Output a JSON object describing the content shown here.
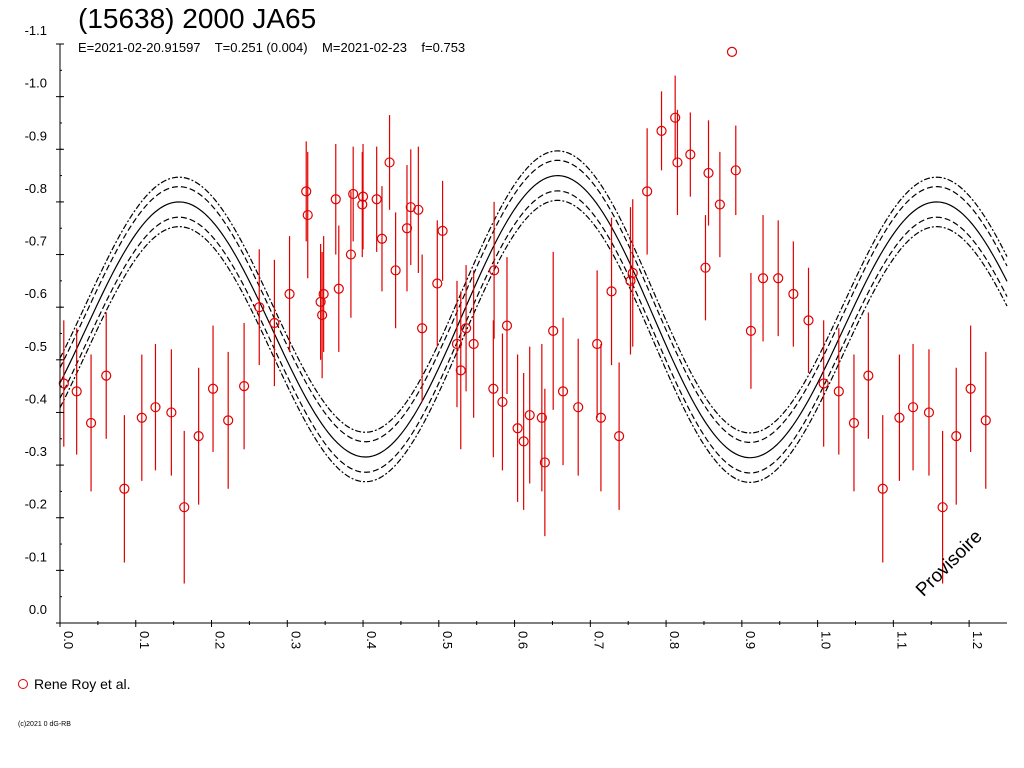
{
  "chart_data": {
    "type": "scatter",
    "title": "(15638) 2000 JA65",
    "subtitle": "E=2021-02-20.91597    T=0.251 (0.004)    M=2021-02-23    f=0.753",
    "xlabel": "",
    "ylabel": "",
    "xlim": [
      0,
      1.25
    ],
    "ylim": [
      0.0,
      -1.1
    ],
    "y_inverted": true,
    "x_ticks": [
      "0.0",
      "0.1",
      "0.2",
      "0.3",
      "0.4",
      "0.5",
      "0.6",
      "0.7",
      "0.8",
      "0.9",
      "1.0",
      "1.1",
      "1.2"
    ],
    "y_ticks": [
      "-1.1",
      "-1.0",
      "-0.9",
      "-0.8",
      "-0.7",
      "-0.6",
      "-0.5",
      "-0.4",
      "-0.3",
      "-0.2",
      "-0.1",
      "0.0"
    ],
    "grid": false,
    "legend_position": "bottom-left",
    "colors": {
      "data": "#e00000",
      "fit": "#000000"
    },
    "series": [
      {
        "name": "Rene Roy et al.",
        "marker": "open-circle",
        "x": [
          0.005,
          0.022,
          0.041,
          0.061,
          0.085,
          0.108,
          0.126,
          0.147,
          0.164,
          0.183,
          0.202,
          0.222,
          0.243,
          0.263,
          0.283,
          0.303,
          0.325,
          0.327,
          0.344,
          0.346,
          0.348,
          0.364,
          0.368,
          0.384,
          0.387,
          0.399,
          0.4,
          0.418,
          0.425,
          0.435,
          0.443,
          0.458,
          0.463,
          0.473,
          0.478,
          0.498,
          0.505,
          0.524,
          0.529,
          0.536,
          0.546,
          0.572,
          0.573,
          0.584,
          0.59,
          0.604,
          0.612,
          0.62,
          0.636,
          0.64,
          0.651,
          0.664,
          0.684,
          0.709,
          0.714,
          0.728,
          0.738,
          0.753,
          0.756,
          0.775,
          0.794,
          0.812,
          0.815,
          0.832,
          0.852,
          0.856,
          0.871,
          0.887,
          0.892,
          0.912,
          0.928,
          0.948,
          0.968,
          0.988,
          1.008,
          1.028,
          1.048,
          1.067,
          1.086,
          1.108,
          1.126,
          1.147,
          1.165,
          1.183,
          1.202,
          1.222
        ],
        "y": [
          -0.455,
          -0.44,
          -0.38,
          -0.47,
          -0.255,
          -0.39,
          -0.41,
          -0.4,
          -0.22,
          -0.355,
          -0.445,
          -0.385,
          -0.45,
          -0.6,
          -0.57,
          -0.625,
          -0.82,
          -0.775,
          -0.61,
          -0.585,
          -0.625,
          -0.805,
          -0.635,
          -0.7,
          -0.815,
          -0.795,
          -0.81,
          -0.805,
          -0.73,
          -0.875,
          -0.67,
          -0.75,
          -0.79,
          -0.785,
          -0.56,
          -0.645,
          -0.745,
          -0.53,
          -0.48,
          -0.56,
          -0.53,
          -0.445,
          -0.67,
          -0.42,
          -0.565,
          -0.37,
          -0.345,
          -0.395,
          -0.39,
          -0.305,
          -0.555,
          -0.44,
          -0.41,
          -0.53,
          -0.39,
          -0.63,
          -0.355,
          -0.65,
          -0.665,
          -0.82,
          -0.935,
          -0.96,
          -0.875,
          -0.89,
          -0.675,
          -0.855,
          -0.795,
          -1.085,
          -0.86,
          -0.555,
          -0.655,
          -0.655,
          -0.625,
          -0.575,
          -0.455,
          -0.44,
          -0.38,
          -0.47,
          -0.255,
          -0.39,
          -0.41,
          -0.4,
          -0.22,
          -0.355,
          -0.445,
          -0.385
        ],
        "err": [
          0.12,
          0.12,
          0.13,
          0.12,
          0.14,
          0.12,
          0.12,
          0.12,
          0.145,
          0.13,
          0.12,
          0.13,
          0.12,
          0.11,
          0.12,
          0.11,
          0.095,
          0.12,
          0.11,
          0.12,
          0.11,
          0.105,
          0.12,
          0.12,
          0.09,
          0.1,
          0.1,
          0.1,
          0.1,
          0.09,
          0.11,
          0.12,
          0.11,
          0.12,
          0.14,
          0.12,
          0.095,
          0.12,
          0.15,
          0.12,
          0.14,
          0.13,
          0.13,
          0.13,
          0.13,
          0.14,
          0.13,
          0.13,
          0.14,
          0.14,
          0.15,
          0.14,
          0.13,
          0.14,
          0.14,
          0.14,
          0.14,
          0.14,
          0.14,
          0.12,
          0.075,
          0.08,
          0.1,
          0.08,
          0.1,
          0.1,
          0.1,
          0,
          0.085,
          0.11,
          0.12,
          0.11,
          0.1,
          0.1,
          0.12,
          0.12,
          0.13,
          0.12,
          0.14,
          0.12,
          0.12,
          0.12,
          0.145,
          0.13,
          0.12,
          0.13
        ]
      }
    ],
    "fit": {
      "mean": -0.57,
      "terms": [
        {
          "harmonic": 1,
          "amp": 0.025,
          "phase_deg": -55
        },
        {
          "harmonic": 2,
          "amp": 0.255,
          "phase_deg": 67
        }
      ],
      "band_inner": 0.029,
      "band_outer": 0.047
    }
  },
  "legend": {
    "label": "Rene Roy et al."
  },
  "watermark": "Provisoire",
  "copyright": "(c)2021 0 dG-RB"
}
